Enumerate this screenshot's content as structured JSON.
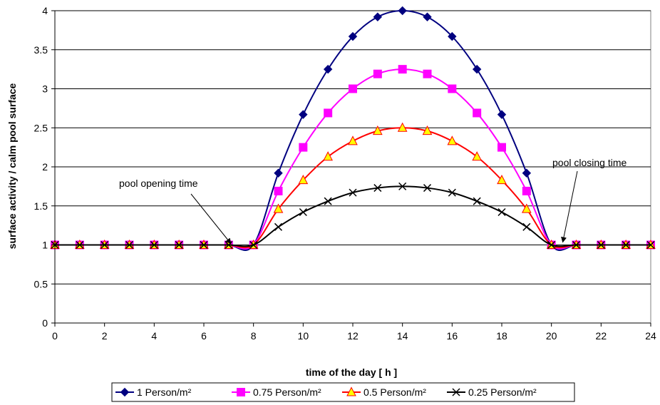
{
  "chart_data": {
    "type": "line",
    "title": "",
    "xlabel": "time of the day [ h ]",
    "ylabel": "surface activity / calm pool surface",
    "xlim": [
      0,
      24
    ],
    "ylim": [
      0,
      4
    ],
    "xticks": [
      "0",
      "2",
      "4",
      "6",
      "8",
      "10",
      "12",
      "14",
      "16",
      "18",
      "20",
      "22",
      "24"
    ],
    "yticks": [
      "0",
      "0.5",
      "1",
      "1.5",
      "2",
      "2.5",
      "3",
      "3.5",
      "4"
    ],
    "grid": "horizontal",
    "legend_position": "bottom",
    "x": [
      0,
      1,
      2,
      3,
      4,
      5,
      6,
      7,
      8,
      9,
      10,
      11,
      12,
      13,
      14,
      15,
      16,
      17,
      18,
      19,
      20,
      21,
      22,
      23,
      24
    ],
    "series": [
      {
        "name": "1 Person/m²",
        "color": "#000080",
        "marker": "diamond",
        "values": [
          1,
          1,
          1,
          1,
          1,
          1,
          1,
          1,
          1,
          1.92,
          2.67,
          3.25,
          3.67,
          3.92,
          4.0,
          3.92,
          3.67,
          3.25,
          2.67,
          1.92,
          1,
          1,
          1,
          1,
          1
        ]
      },
      {
        "name": "0.75 Person/m²",
        "color": "#ff00ff",
        "marker": "square",
        "values": [
          1,
          1,
          1,
          1,
          1,
          1,
          1,
          1,
          1,
          1.69,
          2.25,
          2.69,
          3.0,
          3.19,
          3.25,
          3.19,
          3.0,
          2.69,
          2.25,
          1.69,
          1,
          1,
          1,
          1,
          1
        ]
      },
      {
        "name": "0.5 Person/m²",
        "color": "#ff0000",
        "marker": "triangle",
        "marker_fill": "#ffff00",
        "values": [
          1,
          1,
          1,
          1,
          1,
          1,
          1,
          1,
          1,
          1.46,
          1.83,
          2.13,
          2.33,
          2.46,
          2.5,
          2.46,
          2.33,
          2.13,
          1.83,
          1.46,
          1,
          1,
          1,
          1,
          1
        ]
      },
      {
        "name": "0.25 Person/m²",
        "color": "#000000",
        "marker": "x",
        "values": [
          1,
          1,
          1,
          1,
          1,
          1,
          1,
          1,
          1,
          1.23,
          1.42,
          1.56,
          1.67,
          1.73,
          1.75,
          1.73,
          1.67,
          1.56,
          1.42,
          1.23,
          1,
          1,
          1,
          1,
          1
        ]
      }
    ],
    "annotations": [
      {
        "text": "pool opening time",
        "points_to": [
          7,
          1
        ]
      },
      {
        "text": "pool closing time",
        "points_to": [
          20.4,
          1
        ]
      }
    ]
  }
}
